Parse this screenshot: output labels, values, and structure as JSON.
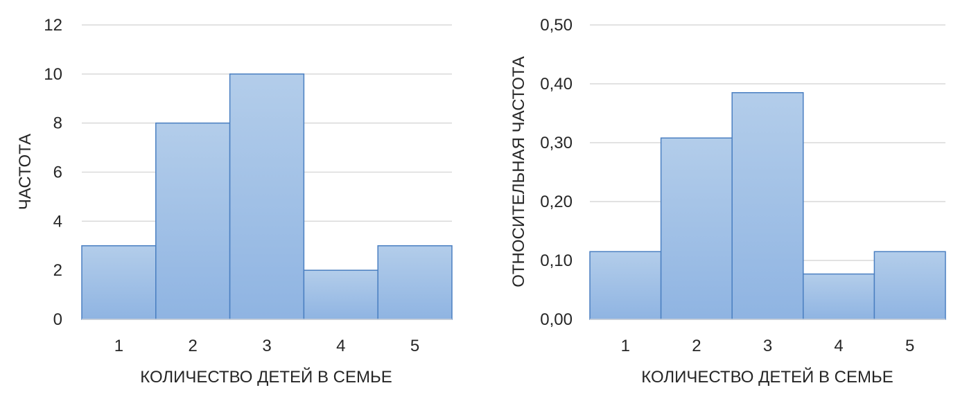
{
  "chart_data": [
    {
      "type": "bar",
      "categories": [
        "1",
        "2",
        "3",
        "4",
        "5"
      ],
      "values": [
        3,
        8,
        10,
        2,
        3
      ],
      "title": "",
      "xlabel": "КОЛИЧЕСТВО ДЕТЕЙ В СЕМЬЕ",
      "ylabel": "ЧАСТОТА",
      "ylim": [
        0,
        12
      ],
      "yticks": [
        "0",
        "2",
        "4",
        "6",
        "8",
        "10",
        "12"
      ],
      "grid": true,
      "legend": "none"
    },
    {
      "type": "bar",
      "categories": [
        "1",
        "2",
        "3",
        "4",
        "5"
      ],
      "values": [
        0.115,
        0.308,
        0.385,
        0.077,
        0.115
      ],
      "title": "",
      "xlabel": "КОЛИЧЕСТВО ДЕТЕЙ В СЕМЬЕ",
      "ylabel": "ОТНОСИТЕЛЬНАЯ ЧАСТОТА",
      "ylim": [
        0,
        0.5
      ],
      "yticks": [
        "0,00",
        "0,10",
        "0,20",
        "0,30",
        "0,40",
        "0,50"
      ],
      "grid": true,
      "legend": "none"
    }
  ],
  "colors": {
    "bar_fill_top": "#b3cdea",
    "bar_fill_bottom": "#8fb4e2",
    "bar_stroke": "#4a7fc1",
    "grid": "#d9d9d9",
    "text": "#262626"
  }
}
